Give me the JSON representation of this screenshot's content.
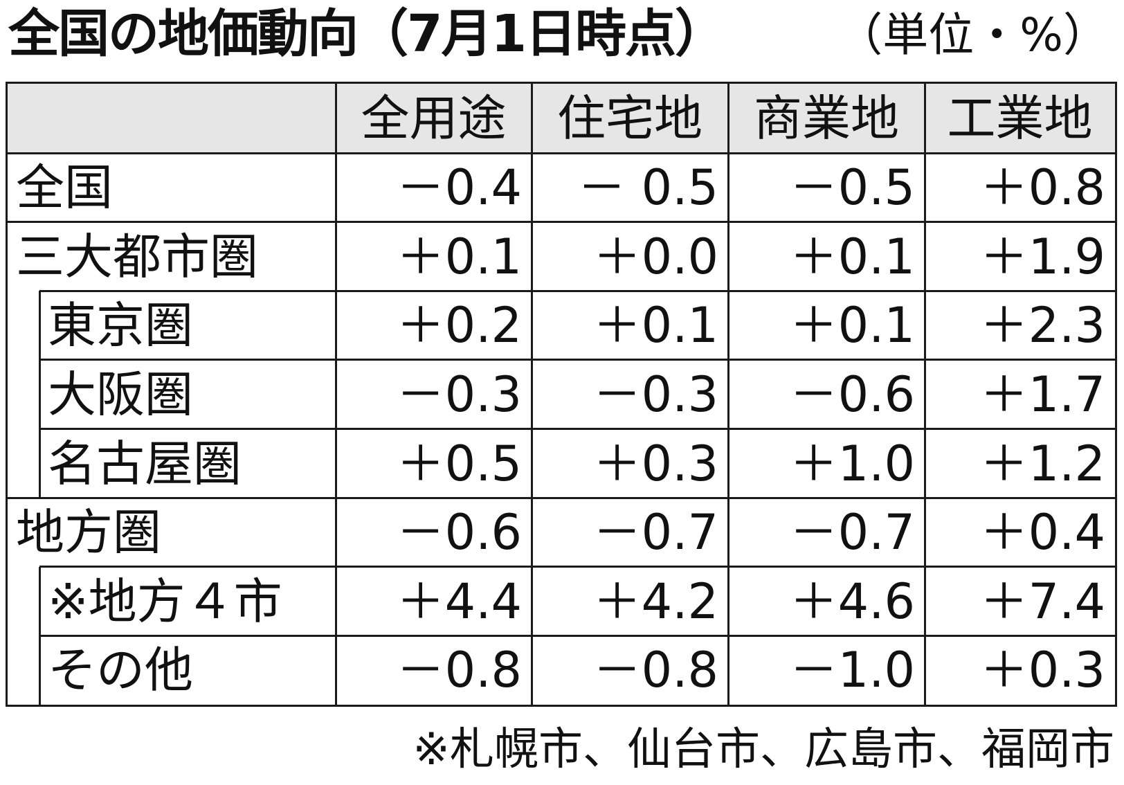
{
  "title": "全国の地価動向（7月1日時点）",
  "unit": "（単位・%）",
  "chart_data": {
    "type": "table",
    "title": "全国の地価動向（7月1日時点）",
    "unit": "（単位・%）",
    "columns": [
      "全用途",
      "住宅地",
      "商業地",
      "工業地"
    ],
    "rows": [
      {
        "label": "全国",
        "level": 0,
        "values": [
          "－0.4",
          "－ 0.5",
          "－0.5",
          "＋0.8"
        ]
      },
      {
        "label": "三大都市圏",
        "level": 0,
        "values": [
          "＋0.1",
          "＋0.0",
          "＋0.1",
          "＋1.9"
        ]
      },
      {
        "label": "東京圏",
        "level": 1,
        "values": [
          "＋0.2",
          "＋0.1",
          "＋0.1",
          "＋2.3"
        ]
      },
      {
        "label": "大阪圏",
        "level": 1,
        "values": [
          "－0.3",
          "－0.3",
          "－0.6",
          "＋1.7"
        ]
      },
      {
        "label": "名古屋圏",
        "level": 1,
        "values": [
          "＋0.5",
          "＋0.3",
          "＋1.0",
          "＋1.2"
        ]
      },
      {
        "label": "地方圏",
        "level": 0,
        "values": [
          "－0.6",
          "－0.7",
          "－0.7",
          "＋0.4"
        ]
      },
      {
        "label": "※地方４市",
        "level": 1,
        "values": [
          "＋4.4",
          "＋4.2",
          "＋4.6",
          "＋7.4"
        ]
      },
      {
        "label": "その他",
        "level": 1,
        "values": [
          "－0.8",
          "－0.8",
          "－1.0",
          "＋0.3"
        ]
      }
    ],
    "header_background": "#e6e6e6"
  },
  "footnote": "※札幌市、仙台市、広島市、福岡市"
}
